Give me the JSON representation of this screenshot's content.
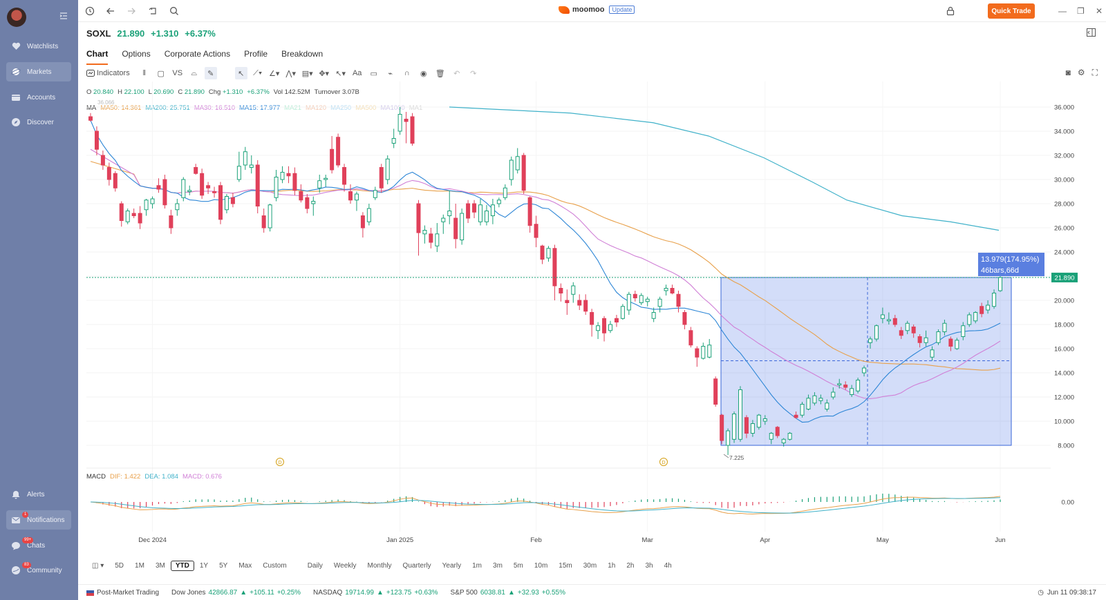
{
  "sidebar": {
    "items": [
      {
        "label": "Watchlists"
      },
      {
        "label": "Markets"
      },
      {
        "label": "Accounts"
      },
      {
        "label": "Discover"
      }
    ],
    "bottom": [
      {
        "label": "Alerts",
        "badge": ""
      },
      {
        "label": "Notifications",
        "badge": "1"
      },
      {
        "label": "Chats",
        "badge": "99+"
      },
      {
        "label": "Community",
        "badge": "83"
      }
    ]
  },
  "topbar": {
    "brand": "moomoo",
    "update_label": "Update",
    "quick_trade_label": "Quick Trade"
  },
  "ticker": {
    "symbol": "SOXL",
    "price": "21.890",
    "change": "+1.310",
    "change_pct": "+6.37%"
  },
  "tabs": [
    {
      "label": "Chart"
    },
    {
      "label": "Options"
    },
    {
      "label": "Corporate Actions"
    },
    {
      "label": "Profile"
    },
    {
      "label": "Breakdown"
    }
  ],
  "toolbar": {
    "indicators_label": "Indicators",
    "vs_label": "VS",
    "text_label": "Aa"
  },
  "ohlc": {
    "o_label": "O",
    "o": "20.840",
    "h_label": "H",
    "h": "22.100",
    "l_label": "L",
    "l": "20.690",
    "c_label": "C",
    "c": "21.890",
    "chg_label": "Chg",
    "chg": "+1.310",
    "chg_pct": "+6.37%",
    "vol_label": "Vol",
    "vol": "142.52M",
    "turnover_label": "Turnover",
    "turnover": "3.07B"
  },
  "ma": {
    "label": "MA",
    "items": [
      {
        "text": "MA50: 14.361",
        "color": "#e8a04a"
      },
      {
        "text": "MA200: 25.751",
        "color": "#3fb1c9"
      },
      {
        "text": "MA30: 16.510",
        "color": "#d07fd6"
      },
      {
        "text": "MA15: 17.977",
        "color": "#2d86d6"
      },
      {
        "text": "MA21",
        "color": "#b8ecd6"
      },
      {
        "text": "MA120",
        "color": "#f3c9b3"
      },
      {
        "text": "MA250",
        "color": "#b6dcf3"
      },
      {
        "text": "MA500",
        "color": "#f3dcb0"
      },
      {
        "text": "MA1000",
        "color": "#d0c8ea"
      },
      {
        "text": "MA1",
        "color": "#d8d8d8"
      }
    ]
  },
  "macd": {
    "label": "MACD",
    "dif": "DIF: 1.422",
    "dea": "DEA: 1.084",
    "macd": "MACD: 0.676"
  },
  "chart_data": {
    "type": "candlestick",
    "y_ticks": [
      "36.000",
      "34.000",
      "32.000",
      "30.000",
      "28.000",
      "26.000",
      "24.000",
      "22.000",
      "20.000",
      "18.000",
      "16.000",
      "14.000",
      "12.000",
      "10.000",
      "8.000"
    ],
    "ylim": [
      7,
      37
    ],
    "x_labels": [
      "Dec 2024",
      "Jan 2025",
      "Feb",
      "Mar",
      "Apr",
      "May",
      "Jun"
    ],
    "last_price_label": "21.890",
    "high_marker": "36.066",
    "low_marker": "7.225",
    "measure_label_1": "13.979(174.95%)",
    "measure_label_2": "46bars,66d",
    "macd_zero_label": "0.00",
    "candles": [
      [
        35.2,
        35.5,
        34.8,
        34.9
      ],
      [
        34.0,
        34.4,
        32.0,
        32.5
      ],
      [
        32.0,
        32.4,
        30.8,
        31.2
      ],
      [
        31.0,
        31.4,
        29.5,
        30.0
      ],
      [
        30.5,
        30.7,
        29.0,
        29.3
      ],
      [
        28.0,
        28.2,
        26.1,
        26.6
      ],
      [
        26.5,
        27.6,
        26.3,
        27.4
      ],
      [
        27.2,
        27.6,
        26.8,
        27.0
      ],
      [
        27.2,
        27.8,
        25.9,
        26.4
      ],
      [
        27.5,
        28.4,
        27.0,
        28.3
      ],
      [
        28.0,
        28.6,
        27.6,
        28.4
      ],
      [
        29.5,
        30.1,
        28.9,
        29.2
      ],
      [
        30.0,
        30.4,
        27.6,
        27.9
      ],
      [
        27.0,
        27.5,
        25.5,
        26.0
      ],
      [
        27.5,
        28.4,
        27.0,
        28.0
      ],
      [
        28.5,
        30.2,
        28.2,
        30.0
      ],
      [
        29.0,
        29.5,
        28.7,
        29.1
      ],
      [
        31.0,
        31.3,
        30.4,
        30.5
      ],
      [
        30.5,
        30.9,
        28.4,
        28.7
      ],
      [
        29.5,
        29.8,
        28.8,
        29.3
      ],
      [
        29.0,
        29.4,
        28.5,
        28.9
      ],
      [
        29.5,
        29.8,
        26.3,
        26.7
      ],
      [
        27.5,
        28.8,
        27.2,
        28.6
      ],
      [
        28.5,
        28.9,
        27.7,
        28.0
      ],
      [
        30.0,
        32.3,
        29.8,
        31.1
      ],
      [
        31.2,
        32.7,
        30.8,
        32.3
      ],
      [
        31.0,
        32.0,
        30.5,
        31.2
      ],
      [
        31.2,
        31.6,
        27.2,
        27.8
      ],
      [
        27.0,
        27.6,
        25.6,
        26.0
      ],
      [
        26.0,
        28.0,
        25.7,
        27.9
      ],
      [
        28.5,
        30.8,
        28.2,
        30.2
      ],
      [
        30.0,
        31.1,
        29.7,
        30.6
      ],
      [
        30.5,
        31.1,
        29.7,
        30.3
      ],
      [
        30.5,
        31.0,
        28.7,
        29.1
      ],
      [
        29.0,
        29.6,
        28.1,
        28.3
      ],
      [
        28.5,
        28.8,
        27.2,
        27.6
      ],
      [
        28.0,
        28.6,
        27.0,
        28.2
      ],
      [
        29.3,
        30.4,
        28.9,
        29.9
      ],
      [
        30.0,
        30.4,
        29.4,
        30.1
      ],
      [
        32.5,
        33.6,
        30.5,
        30.8
      ],
      [
        33.5,
        33.8,
        31.0,
        31.2
      ],
      [
        31.0,
        31.3,
        29.0,
        29.6
      ],
      [
        29.0,
        29.6,
        28.0,
        28.3
      ],
      [
        28.3,
        29.0,
        27.4,
        28.8
      ],
      [
        27.0,
        27.3,
        25.2,
        26.0
      ],
      [
        26.5,
        28.0,
        26.2,
        27.6
      ],
      [
        28.5,
        29.4,
        28.3,
        29.1
      ],
      [
        31.0,
        31.3,
        28.9,
        29.3
      ],
      [
        30.0,
        32.0,
        29.6,
        31.7
      ],
      [
        33.0,
        34.2,
        32.6,
        33.4
      ],
      [
        34.0,
        36.0,
        33.7,
        35.4
      ],
      [
        35.0,
        35.6,
        33.0,
        34.8
      ],
      [
        35.2,
        35.5,
        32.8,
        33.0
      ],
      [
        28.0,
        28.3,
        23.7,
        25.6
      ],
      [
        25.5,
        26.2,
        24.7,
        25.8
      ],
      [
        25.5,
        26.0,
        24.3,
        24.8
      ],
      [
        24.5,
        26.4,
        24.0,
        25.5
      ],
      [
        26.5,
        27.1,
        25.5,
        26.8
      ],
      [
        27.0,
        29.1,
        26.3,
        27.4
      ],
      [
        26.8,
        28.0,
        24.3,
        25.1
      ],
      [
        25.0,
        27.6,
        24.6,
        27.2
      ],
      [
        28.0,
        28.3,
        26.4,
        26.8
      ],
      [
        28.0,
        28.3,
        26.8,
        27.3
      ],
      [
        26.5,
        28.4,
        26.2,
        27.9
      ],
      [
        26.5,
        27.9,
        26.2,
        27.4
      ],
      [
        27.0,
        28.4,
        26.3,
        27.9
      ],
      [
        28.0,
        28.5,
        27.7,
        28.3
      ],
      [
        28.5,
        29.6,
        28.3,
        29.3
      ],
      [
        30.0,
        31.9,
        29.5,
        31.6
      ],
      [
        30.8,
        32.6,
        30.5,
        31.9
      ],
      [
        32.0,
        32.2,
        28.8,
        29.1
      ],
      [
        28.5,
        28.6,
        25.6,
        26.2
      ],
      [
        26.3,
        27.0,
        24.4,
        25.2
      ],
      [
        24.5,
        24.6,
        23.0,
        23.4
      ],
      [
        23.5,
        24.5,
        23.2,
        24.3
      ],
      [
        24.3,
        24.6,
        20.0,
        21.2
      ],
      [
        21.0,
        21.4,
        19.9,
        20.6
      ],
      [
        20.0,
        20.9,
        18.8,
        19.8
      ],
      [
        20.5,
        21.5,
        19.8,
        21.2
      ],
      [
        20.0,
        20.5,
        19.2,
        19.6
      ],
      [
        20.0,
        20.5,
        18.8,
        19.1
      ],
      [
        19.0,
        19.3,
        17.0,
        18.0
      ],
      [
        17.5,
        18.2,
        16.8,
        17.9
      ],
      [
        18.5,
        18.7,
        16.6,
        17.3
      ],
      [
        17.5,
        18.3,
        17.3,
        18.0
      ],
      [
        18.5,
        18.8,
        17.8,
        18.2
      ],
      [
        18.5,
        19.7,
        18.4,
        19.5
      ],
      [
        19.2,
        20.7,
        18.8,
        20.5
      ],
      [
        20.5,
        20.8,
        19.9,
        20.2
      ],
      [
        19.8,
        20.6,
        19.6,
        20.4
      ],
      [
        19.9,
        20.3,
        19.5,
        20.1
      ],
      [
        18.5,
        19.4,
        18.2,
        19.0
      ],
      [
        19.5,
        20.3,
        19.0,
        20.1
      ],
      [
        20.8,
        21.3,
        20.4,
        21.0
      ],
      [
        21.0,
        21.3,
        20.5,
        20.6
      ],
      [
        20.5,
        20.8,
        19.0,
        19.5
      ],
      [
        19.0,
        19.2,
        17.6,
        18.0
      ],
      [
        17.5,
        17.8,
        16.1,
        16.3
      ],
      [
        16.0,
        16.2,
        14.5,
        15.3
      ],
      [
        15.2,
        16.5,
        15.1,
        16.2
      ],
      [
        15.3,
        16.8,
        15.2,
        16.3
      ],
      [
        13.5,
        13.7,
        11.2,
        11.4
      ],
      [
        10.5,
        10.6,
        8.1,
        8.4
      ],
      [
        8.0,
        9.4,
        7.2,
        9.2
      ],
      [
        8.5,
        10.8,
        8.2,
        10.6
      ],
      [
        8.5,
        12.9,
        8.3,
        12.6
      ],
      [
        10.3,
        10.5,
        8.6,
        9.0
      ],
      [
        9.0,
        10.1,
        8.7,
        9.8
      ],
      [
        9.5,
        10.6,
        9.3,
        10.5
      ],
      [
        10.0,
        10.5,
        9.7,
        10.2
      ],
      [
        8.5,
        9.1,
        8.1,
        9.0
      ],
      [
        9.5,
        9.6,
        8.6,
        8.8
      ],
      [
        8.2,
        8.6,
        7.9,
        8.5
      ],
      [
        8.5,
        9.1,
        8.4,
        9.0
      ],
      [
        10.5,
        10.8,
        10.2,
        10.3
      ],
      [
        10.5,
        11.6,
        10.3,
        11.4
      ],
      [
        11.0,
        12.2,
        10.9,
        11.9
      ],
      [
        11.5,
        12.4,
        11.3,
        12.1
      ],
      [
        11.7,
        12.2,
        11.4,
        11.9
      ],
      [
        11.0,
        11.8,
        10.8,
        11.5
      ],
      [
        12.0,
        12.8,
        11.8,
        12.4
      ],
      [
        13.0,
        13.5,
        12.7,
        13.1
      ],
      [
        13.0,
        13.3,
        12.6,
        12.8
      ],
      [
        12.2,
        13.0,
        12.0,
        12.7
      ],
      [
        12.5,
        13.6,
        12.3,
        13.4
      ],
      [
        14.0,
        14.6,
        13.7,
        14.4
      ],
      [
        16.5,
        17.0,
        16.0,
        16.8
      ],
      [
        16.8,
        18.0,
        16.6,
        17.9
      ],
      [
        18.5,
        19.4,
        18.1,
        18.8
      ],
      [
        18.3,
        19.0,
        18.0,
        18.4
      ],
      [
        18.5,
        18.8,
        17.8,
        18.0
      ],
      [
        17.5,
        17.8,
        16.8,
        17.1
      ],
      [
        17.5,
        18.3,
        17.2,
        18.1
      ],
      [
        17.8,
        18.0,
        16.9,
        17.3
      ],
      [
        17.0,
        17.2,
        16.1,
        16.5
      ],
      [
        16.5,
        17.5,
        16.2,
        16.9
      ],
      [
        15.3,
        16.2,
        15.0,
        15.9
      ],
      [
        16.5,
        17.6,
        16.3,
        17.4
      ],
      [
        17.4,
        18.4,
        17.1,
        18.1
      ],
      [
        16.8,
        17.0,
        15.8,
        16.2
      ],
      [
        16.0,
        16.9,
        15.9,
        16.7
      ],
      [
        17.0,
        18.2,
        16.7,
        17.9
      ],
      [
        18.0,
        19.0,
        17.8,
        18.8
      ],
      [
        18.3,
        19.1,
        18.1,
        19.0
      ],
      [
        19.5,
        19.8,
        18.6,
        18.9
      ],
      [
        19.2,
        20.0,
        18.9,
        19.6
      ],
      [
        19.5,
        20.9,
        19.3,
        20.6
      ],
      [
        20.8,
        22.1,
        20.7,
        21.9
      ]
    ],
    "ma_series": [
      {
        "name": "MA15",
        "color": "#2d86d6"
      },
      {
        "name": "MA30",
        "color": "#d07fd6"
      },
      {
        "name": "MA50",
        "color": "#e8a04a"
      },
      {
        "name": "MA200",
        "color": "#3fb1c9"
      }
    ],
    "up_color": "#1aa178",
    "down_color": "#e0405a"
  },
  "periods": [
    "5D",
    "1M",
    "3M",
    "YTD",
    "1Y",
    "5Y",
    "Max",
    "Custom",
    "Daily",
    "Weekly",
    "Monthly",
    "Quarterly",
    "Yearly",
    "1m",
    "3m",
    "5m",
    "10m",
    "15m",
    "30m",
    "1h",
    "2h",
    "3h",
    "4h"
  ],
  "period_selected": "YTD",
  "footer": {
    "post_market": "Post-Market Trading",
    "indices": [
      {
        "name": "Dow Jones",
        "value": "42866.87",
        "change": "+105.11",
        "pct": "+0.25%"
      },
      {
        "name": "NASDAQ",
        "value": "19714.99",
        "change": "+123.75",
        "pct": "+0.63%"
      },
      {
        "name": "S&P 500",
        "value": "6038.81",
        "change": "+32.93",
        "pct": "+0.55%"
      }
    ],
    "timestamp": "Jun 11 09:38:17"
  }
}
